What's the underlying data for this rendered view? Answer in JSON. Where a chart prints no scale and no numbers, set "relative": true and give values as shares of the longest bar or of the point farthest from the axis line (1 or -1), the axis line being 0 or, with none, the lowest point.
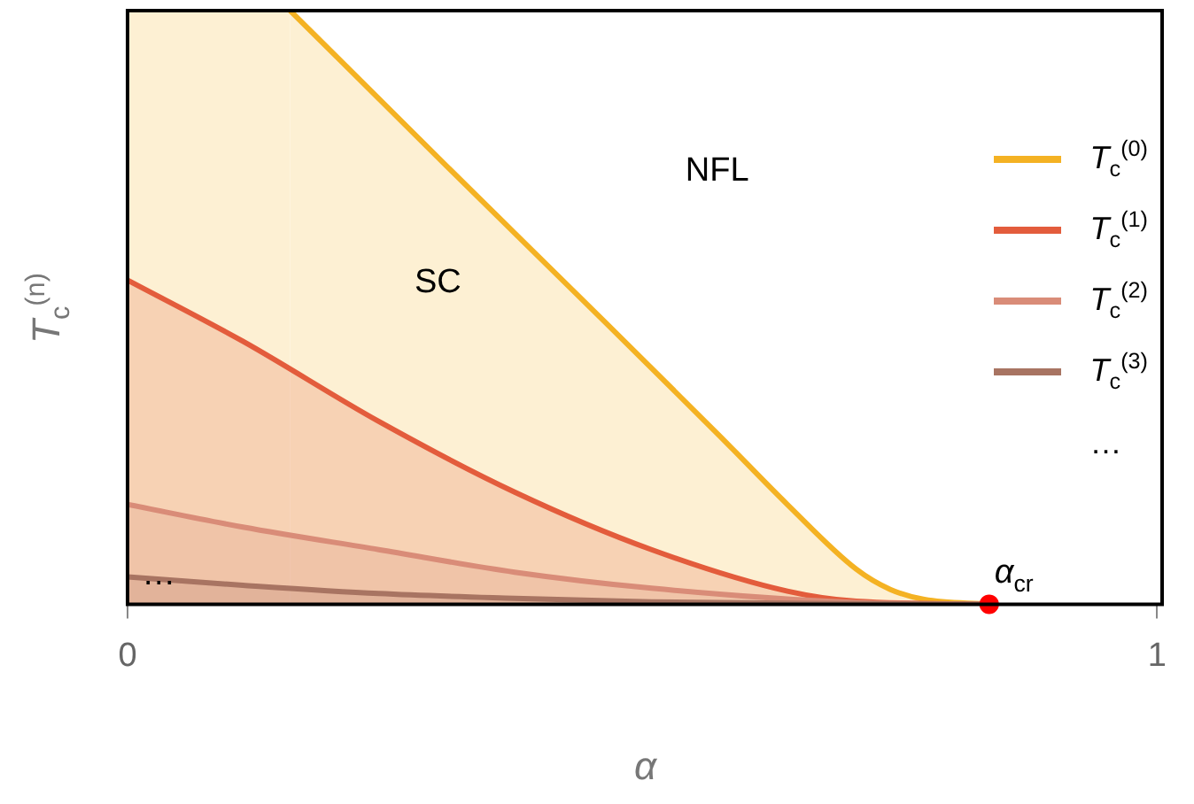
{
  "chart_data": {
    "type": "area",
    "relative": true,
    "xlabel": "α",
    "ylabel": "T$_{c}$$^{(n)}$",
    "xlim": [
      0,
      1.005
    ],
    "xticks": [
      0,
      1
    ],
    "legend": "top right",
    "grid": false,
    "series": [
      {
        "name": "T$_{c}$$^{(0)}$",
        "color": "#f4b223",
        "x": [
          0.158,
          0.31,
          0.443,
          0.575,
          0.641,
          0.708,
          0.741,
          0.774,
          0.837
        ],
        "values": [
          1,
          0.738,
          0.511,
          0.284,
          0.168,
          0.059,
          0.025,
          0.008,
          0
        ]
      },
      {
        "name": "T$_{c}$$^{(1)}$",
        "color": "#e35c3c",
        "x": [
          0,
          0.112,
          0.244,
          0.376,
          0.509,
          0.641,
          0.708,
          0.837
        ],
        "values": [
          0.546,
          0.443,
          0.308,
          0.189,
          0.092,
          0.022,
          0.005,
          0
        ]
      },
      {
        "name": "T$_{c}$$^{(2)}$",
        "color": "#d98c78",
        "x": [
          0,
          0.112,
          0.244,
          0.376,
          0.509,
          0.708,
          0.837
        ],
        "values": [
          0.168,
          0.13,
          0.092,
          0.054,
          0.027,
          0.003,
          0
        ]
      },
      {
        "name": "T$_{c}$$^{(3)}$",
        "color": "#a87462",
        "x": [
          0,
          0.112,
          0.244,
          0.376,
          0.509,
          0.708,
          0.837
        ],
        "values": [
          0.046,
          0.032,
          0.018,
          0.01,
          0.004,
          0.001,
          0
        ]
      },
      {
        "type": "scatter",
        "color": "#ff0000",
        "x": [
          0.837
        ],
        "values": [
          0
        ],
        "marker": "circle"
      }
    ],
    "bands": [
      {
        "axis": "x",
        "from": 0,
        "to": 0.158,
        "color": "#fdf0d3"
      }
    ],
    "annotations": [
      "…",
      "SC",
      "NFL",
      {
        "text": "α$_{cr}$",
        "x": 0.837,
        "y": 0
      },
      {
        "text": "…",
        "x": 0.02,
        "y": 0
      }
    ]
  }
}
